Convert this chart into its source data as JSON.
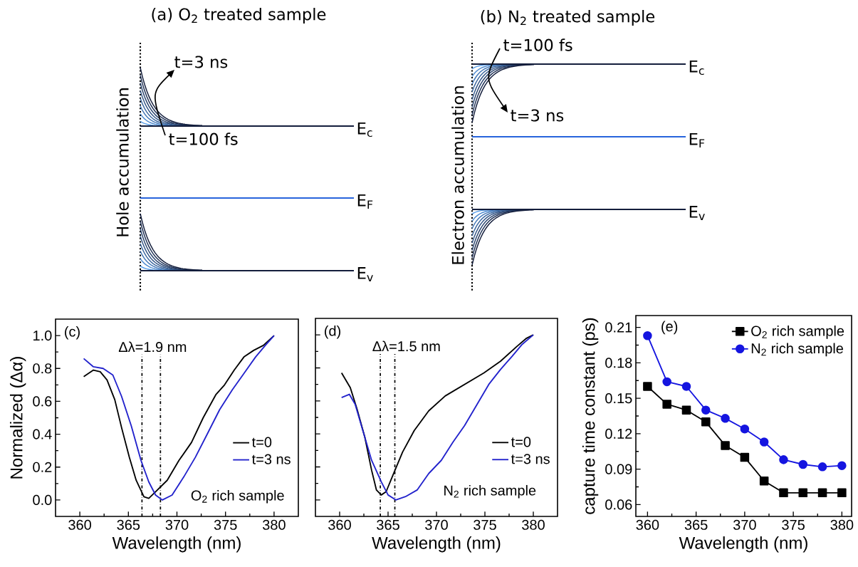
{
  "chart_data": [
    {
      "type": "other",
      "title": "(a) O$_{2}$ treated sample",
      "ylabel": "Hole accumulation",
      "annotations": [
        "t=3 ns",
        "t=100 fs",
        "E$_{c}$",
        "E$_{F}$",
        "E$_{v}$"
      ]
    },
    {
      "type": "other",
      "title": "(b) N$_{2}$ treated sample",
      "ylabel": "Electron accumulation",
      "annotations": [
        "t=100 fs",
        "t=3 ns",
        "E$_{c}$",
        "E$_{F}$",
        "E$_{v}$"
      ]
    },
    {
      "type": "line",
      "xlabel": "Wavelength (nm)",
      "ylabel": "Normalized (Δα)",
      "xlim": [
        357.5,
        382.5
      ],
      "ylim": [
        -0.1,
        1.1
      ],
      "xticks": [
        360,
        365,
        370,
        375,
        380
      ],
      "yticks": [
        {
          "value": 0,
          "label": "0.0"
        },
        0.2,
        0.4,
        0.6,
        0.8,
        {
          "value": 1,
          "label": "1.0"
        }
      ],
      "legend": "right",
      "annotations": [
        "(c)",
        "Δλ=1.9 nm",
        "O$_{2}$ rich sample"
      ],
      "ref_lines": [
        {
          "axis": "x",
          "value": 366.4,
          "line_style": "dashdot",
          "color": "#000000"
        },
        {
          "axis": "x",
          "value": 368.3,
          "line_style": "dashdot",
          "color": "#000000"
        }
      ],
      "series": [
        {
          "name": "t=0",
          "color": "#000000",
          "x": [
            360.4,
            361.4,
            362.1,
            362.8,
            363.6,
            364.3,
            365.1,
            365.8,
            366.6,
            367.1,
            367.8,
            369.0,
            370.2,
            371.5,
            372.7,
            374.0,
            374.9,
            375.9,
            376.9,
            377.9,
            378.9,
            380.0
          ],
          "values": [
            0.75,
            0.79,
            0.78,
            0.73,
            0.61,
            0.44,
            0.26,
            0.12,
            0.02,
            0.01,
            0.05,
            0.12,
            0.24,
            0.35,
            0.5,
            0.64,
            0.7,
            0.79,
            0.87,
            0.91,
            0.94,
            1.0
          ]
        },
        {
          "name": "t=3 ns",
          "color": "#2222cc",
          "x": [
            360.4,
            361.4,
            362.4,
            363.4,
            364.3,
            365.3,
            366.3,
            367.1,
            367.8,
            368.5,
            369.5,
            370.7,
            371.9,
            373.2,
            374.4,
            375.7,
            376.9,
            378.1,
            379.1,
            380.0
          ],
          "values": [
            0.86,
            0.81,
            0.8,
            0.76,
            0.63,
            0.45,
            0.24,
            0.11,
            0.03,
            0.0,
            0.03,
            0.14,
            0.26,
            0.41,
            0.55,
            0.67,
            0.77,
            0.87,
            0.94,
            1.0
          ]
        }
      ]
    },
    {
      "type": "line",
      "xlabel": "Wavelength (nm)",
      "xlim": [
        357.5,
        382.5
      ],
      "ylim": [
        -0.1,
        1.1
      ],
      "xticks": [
        360,
        365,
        370,
        375,
        380
      ],
      "yticks": [
        0,
        0.2,
        0.4,
        0.6,
        0.8,
        1
      ],
      "tick_labels": "x",
      "legend": "right",
      "annotations": [
        "(d)",
        "Δλ=1.5 nm",
        "N$_{2}$ rich sample"
      ],
      "ref_lines": [
        {
          "axis": "x",
          "value": 364.2,
          "line_style": "dashdot",
          "color": "#000000"
        },
        {
          "axis": "x",
          "value": 365.7,
          "line_style": "dashdot",
          "color": "#000000"
        }
      ],
      "series": [
        {
          "name": "t=0",
          "color": "#000000",
          "x": [
            360.2,
            361.1,
            361.8,
            362.6,
            363.3,
            363.8,
            364.3,
            364.8,
            365.5,
            366.5,
            367.7,
            369.2,
            370.9,
            372.9,
            374.9,
            376.6,
            378.3,
            379.3,
            380.0
          ],
          "values": [
            0.77,
            0.68,
            0.55,
            0.38,
            0.18,
            0.06,
            0.03,
            0.05,
            0.15,
            0.29,
            0.42,
            0.54,
            0.63,
            0.7,
            0.77,
            0.84,
            0.93,
            0.98,
            1.0
          ]
        },
        {
          "name": "t=3 ns",
          "color": "#2222cc",
          "x": [
            360.2,
            361.0,
            361.6,
            362.3,
            363.3,
            364.3,
            365.0,
            365.8,
            366.8,
            368.0,
            369.2,
            370.5,
            371.7,
            372.9,
            374.2,
            375.4,
            376.6,
            377.8,
            378.8,
            380.0
          ],
          "values": [
            0.62,
            0.64,
            0.58,
            0.44,
            0.24,
            0.11,
            0.03,
            0.0,
            0.02,
            0.06,
            0.16,
            0.24,
            0.35,
            0.45,
            0.58,
            0.7,
            0.79,
            0.87,
            0.94,
            1.0
          ]
        }
      ]
    },
    {
      "type": "line",
      "xlabel": "Wavelength (nm)",
      "ylabel": "capture time constant (ps)",
      "xlim": [
        358.8,
        381
      ],
      "ylim": [
        0.05,
        0.22
      ],
      "xticks": [
        360,
        365,
        370,
        375,
        380
      ],
      "yticks": [
        0.06,
        0.09,
        0.12,
        0.15,
        0.18,
        0.21
      ],
      "legend": "top right",
      "annotations": [
        "(e)"
      ],
      "x": [
        360,
        362,
        364,
        366,
        368,
        370,
        372,
        374,
        376,
        378,
        380
      ],
      "series": [
        {
          "name": "O$_{2}$ rich sample",
          "color": "#000000",
          "marker": "square",
          "values": [
            0.16,
            0.145,
            0.14,
            0.13,
            0.11,
            0.1,
            0.08,
            0.07,
            0.07,
            0.07,
            0.07
          ]
        },
        {
          "name": "N$_{2}$ rich sample",
          "color": "#1515e0",
          "marker": "circle",
          "values": [
            0.203,
            0.164,
            0.16,
            0.14,
            0.133,
            0.124,
            0.113,
            0.098,
            0.094,
            0.092,
            0.093
          ]
        }
      ]
    }
  ]
}
